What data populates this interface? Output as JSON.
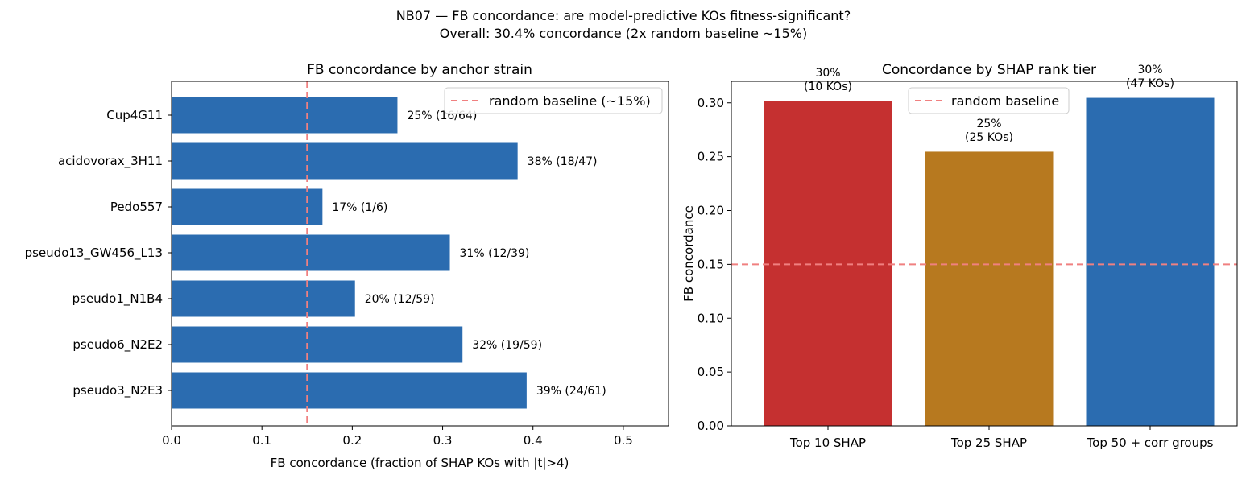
{
  "suptitle": {
    "line1": "NB07 — FB concordance: are model-predictive KOs fitness-significant?",
    "line2": "Overall: 30.4% concordance (2x random baseline ~15%)"
  },
  "chart_data": [
    {
      "type": "bar",
      "orientation": "horizontal",
      "title": "FB concordance by anchor strain",
      "xlabel": "FB concordance (fraction of SHAP KOs with |t|>4)",
      "ylabel": "",
      "xlim": [
        0,
        0.55
      ],
      "xticks": [
        "0.0",
        "0.1",
        "0.2",
        "0.3",
        "0.4",
        "0.5"
      ],
      "xtick_values": [
        0,
        0.1,
        0.2,
        0.3,
        0.4,
        0.5
      ],
      "categories": [
        "Cup4G11",
        "acidovorax_3H11",
        "Pedo557",
        "pseudo13_GW456_L13",
        "pseudo1_N1B4",
        "pseudo6_N2E2",
        "pseudo3_N2E3"
      ],
      "values": [
        0.25,
        0.383,
        0.167,
        0.308,
        0.203,
        0.322,
        0.393
      ],
      "bar_labels": [
        "25% (16/64)",
        "38% (18/47)",
        "17% (1/6)",
        "31% (12/39)",
        "20% (12/59)",
        "32% (19/59)",
        "39% (24/61)"
      ],
      "bar_color": "#2b6cb0",
      "reference_line": {
        "value": 0.15,
        "orientation": "vertical",
        "label": "random baseline (~15%)",
        "color": "#f08080"
      },
      "legend": {
        "placement": "upper right",
        "entries": [
          "random baseline (~15%)"
        ]
      },
      "grid": false
    },
    {
      "type": "bar",
      "orientation": "vertical",
      "title": "Concordance by SHAP rank tier",
      "xlabel": "",
      "ylabel": "FB concordance",
      "ylim": [
        0,
        0.32
      ],
      "yticks": [
        "0.00",
        "0.05",
        "0.10",
        "0.15",
        "0.20",
        "0.25",
        "0.30"
      ],
      "ytick_values": [
        0,
        0.05,
        0.1,
        0.15,
        0.2,
        0.25,
        0.3
      ],
      "categories": [
        "Top 10 SHAP",
        "Top 25 SHAP",
        "Top 50 + corr groups"
      ],
      "values": [
        0.302,
        0.255,
        0.305
      ],
      "bar_labels": [
        {
          "line1": "30%",
          "line2": "(10 KOs)"
        },
        {
          "line1": "25%",
          "line2": "(25 KOs)"
        },
        {
          "line1": "30%",
          "line2": "(47 KOs)"
        }
      ],
      "colors": [
        "#c53030",
        "#b7791f",
        "#2b6cb0"
      ],
      "reference_line": {
        "value": 0.15,
        "orientation": "horizontal",
        "label": "random baseline",
        "color": "#f08080"
      },
      "legend": {
        "placement": "upper center",
        "entries": [
          "random baseline"
        ]
      },
      "grid": false
    }
  ]
}
